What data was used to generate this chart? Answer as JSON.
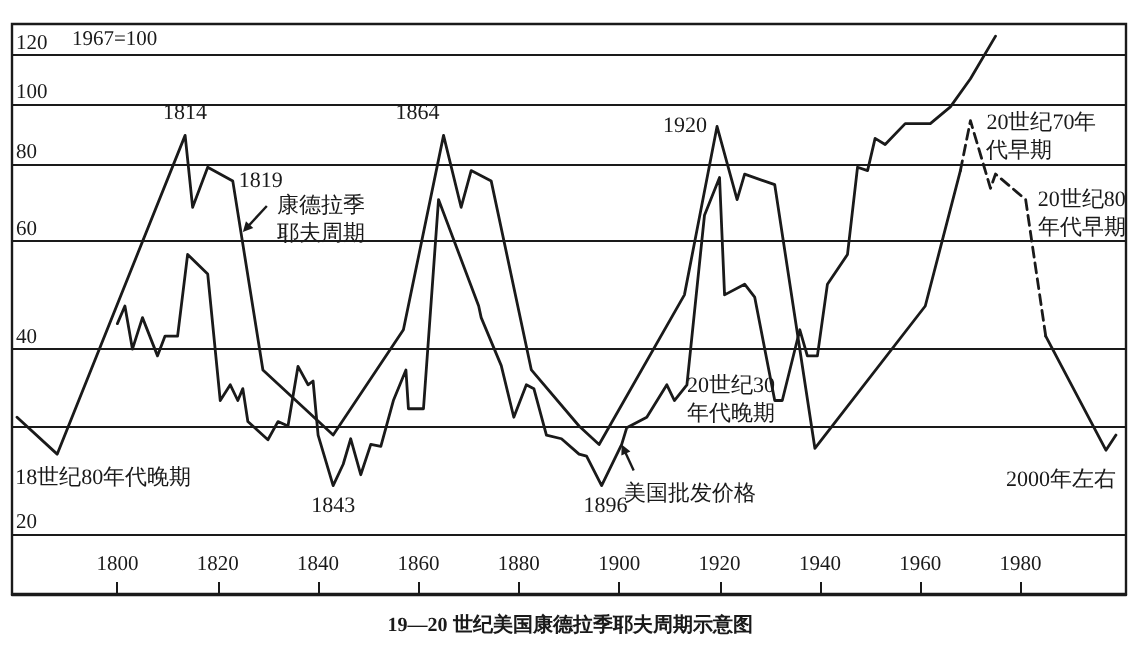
{
  "chart_data": {
    "type": "line",
    "title": "19—20 世纪美国康德拉季耶夫周期示意图",
    "ylabel": "1967=100",
    "xlim": [
      1779,
      2001
    ],
    "xticks": [
      1800,
      1820,
      1840,
      1860,
      1880,
      1900,
      1920,
      1940,
      1960,
      1980
    ],
    "ylim": [
      16,
      135
    ],
    "yticks": [
      20,
      {
        "value": 30,
        "label": null
      },
      40,
      60,
      80,
      100,
      120
    ],
    "log": true,
    "grid": "y",
    "series": [
      {
        "color": "#1a1a1a",
        "line_style": "solid",
        "x": [
          1780,
          1788,
          1813.5,
          1815,
          1818,
          1823,
          1829,
          1843,
          1857,
          1865,
          1868.5,
          1870.5,
          1874.5,
          1882.5,
          1892,
          1896,
          1913,
          1919.5,
          1923.5,
          1925,
          1931,
          1939,
          1961,
          1968,
          1976,
          1985,
          1997,
          1999
        ],
        "values": [
          31,
          27,
          89,
          68,
          79,
          75,
          37,
          29,
          43,
          89,
          68,
          78,
          75,
          37,
          30,
          28,
          49,
          92,
          70,
          77,
          74,
          27.6,
          47,
          78,
          null,
          42,
          27.4,
          29
        ]
      },
      {
        "color": "#1a1a1a",
        "line_style": "dashed",
        "x": [
          1968,
          1970,
          1974,
          1975,
          1981,
          1985
        ],
        "values": [
          78,
          94,
          73,
          77,
          70,
          42
        ]
      },
      {
        "color": "#1a1a1a",
        "line_style": "solid",
        "x": [
          1800,
          1801.5,
          1803,
          1805,
          1808,
          1809.5,
          1812,
          1814,
          1818,
          1820.5,
          1822.5,
          1824,
          1825,
          1826,
          1830,
          1832,
          1834,
          1836,
          1838,
          1839,
          1840,
          1843,
          1845,
          1846.5,
          1848.5,
          1850.5,
          1852.5,
          1855,
          1857.5,
          1858,
          1861,
          1864,
          1872,
          1872.5,
          1876.5,
          1879,
          1881.5,
          1883,
          1885.5,
          1888.5,
          1892,
          1893.5,
          1896.5,
          1900.5,
          1901.5,
          1905.5,
          1909.5,
          1911,
          1913.5,
          1917,
          1920,
          1921,
          1925,
          1927,
          1931,
          1932.5,
          1936,
          1937.5,
          1939.5,
          1941.5,
          1945.5,
          1947.5,
          1949.5,
          1951,
          1953,
          1957,
          1962,
          1966,
          1970,
          1975
        ],
        "values": [
          44,
          47,
          40,
          45,
          39,
          42,
          42,
          57,
          53,
          33,
          35,
          33,
          34.5,
          30.5,
          28.5,
          30.5,
          30,
          37.5,
          35,
          35.5,
          29,
          24,
          26,
          28.6,
          25,
          28,
          27.8,
          33,
          37,
          32,
          32,
          70,
          47,
          45,
          37.6,
          31,
          35,
          34.5,
          29,
          28.6,
          27,
          26.8,
          24,
          28,
          29.8,
          31,
          35,
          33,
          35,
          66,
          76,
          49,
          51,
          48.6,
          33,
          33,
          43,
          39,
          39,
          51,
          57,
          79,
          78,
          88,
          86,
          93,
          93,
          99,
          110,
          129
        ]
      }
    ],
    "annotations": [
      {
        "text": "1814",
        "x": 1813.5,
        "y": 89
      },
      {
        "text": "1819",
        "x": 1823,
        "y": 75
      },
      {
        "text": "康德拉季耶夫周期",
        "x": 1825,
        "y": 62
      },
      {
        "text": "1864",
        "x": 1865,
        "y": 89
      },
      {
        "text": "1843",
        "x": 1843,
        "y": 24
      },
      {
        "text": "1920",
        "x": 1919.5,
        "y": 92
      },
      {
        "text": "1896",
        "x": 1896.5,
        "y": 24
      },
      {
        "text": "18世纪80年代晚期",
        "x": 1788,
        "y": 27
      },
      {
        "text": "20世纪30年代晚期",
        "x": 1939,
        "y": 27.6
      },
      {
        "text": "美国批发价格",
        "x": 1900.5,
        "y": 28
      },
      {
        "text": "20世纪70年代早期",
        "x": 1970,
        "y": 94
      },
      {
        "text": "20世纪80年代早期",
        "x": 1981,
        "y": 70
      },
      {
        "text": "2000年左右",
        "x": 1997,
        "y": 27.4
      }
    ]
  }
}
